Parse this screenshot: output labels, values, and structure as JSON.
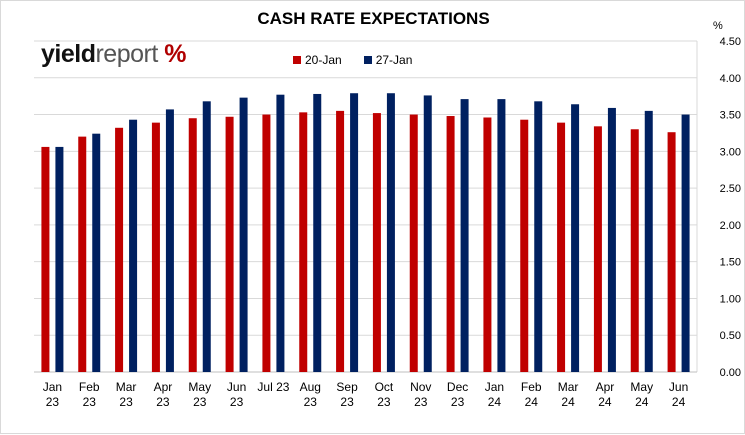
{
  "chart_data": {
    "type": "bar",
    "title": "CASH RATE EXPECTATIONS",
    "unit": "%",
    "categories": [
      "Jan\n23",
      "Feb\n23",
      "Mar\n23",
      "Apr\n23",
      "May\n23",
      "Jun\n23",
      "Jul 23",
      "Aug\n23",
      "Sep\n23",
      "Oct\n23",
      "Nov\n23",
      "Dec\n23",
      "Jan\n24",
      "Feb\n24",
      "Mar\n24",
      "Apr\n24",
      "May\n24",
      "Jun\n24"
    ],
    "series": [
      {
        "name": "20-Jan",
        "color": "#c00000",
        "values": [
          3.06,
          3.2,
          3.32,
          3.39,
          3.45,
          3.47,
          3.5,
          3.53,
          3.55,
          3.52,
          3.5,
          3.48,
          3.46,
          3.43,
          3.39,
          3.34,
          3.3,
          3.26
        ]
      },
      {
        "name": "27-Jan",
        "color": "#002060",
        "values": [
          3.06,
          3.24,
          3.43,
          3.57,
          3.68,
          3.73,
          3.77,
          3.78,
          3.79,
          3.79,
          3.76,
          3.71,
          3.71,
          3.68,
          3.64,
          3.59,
          3.55,
          3.5
        ]
      }
    ],
    "yticks": [
      "0.00",
      "0.50",
      "1.00",
      "1.50",
      "2.00",
      "2.50",
      "3.00",
      "3.50",
      "4.00",
      "4.50"
    ],
    "ylim": [
      0,
      4.5
    ],
    "grid": true,
    "y_axis_side": "right",
    "legend_position": "top-center"
  },
  "logo": {
    "bold": "yield",
    "light": "report",
    "mark": "%"
  }
}
